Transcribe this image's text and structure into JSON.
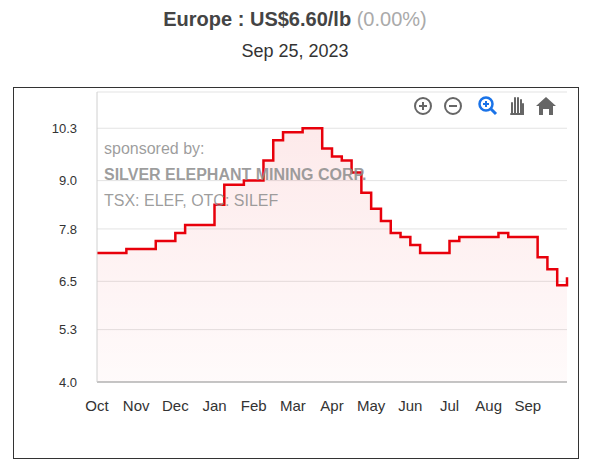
{
  "chart_data": {
    "type": "area",
    "title": "Europe : US$6.60/lb",
    "subtitle": "Sep 25, 2023",
    "annotations": [
      "(0.00%)",
      "sponsored by:",
      "SILVER ELEPHANT MINING CORP.",
      "TSX: ELEF, OTC: SILEF"
    ],
    "categories": [
      "Oct",
      null,
      null,
      null,
      "Nov",
      null,
      null,
      null,
      "Dec",
      null,
      null,
      null,
      "Jan",
      null,
      null,
      null,
      "Feb",
      null,
      null,
      null,
      "Mar",
      null,
      null,
      null,
      "Apr",
      null,
      null,
      null,
      "May",
      null,
      null,
      null,
      "Jun",
      null,
      null,
      null,
      "Jul",
      null,
      null,
      null,
      "Aug",
      null,
      null,
      null,
      "Sep",
      null,
      null,
      null,
      null
    ],
    "values": [
      7.2,
      7.2,
      7.2,
      7.3,
      7.3,
      7.3,
      7.5,
      7.5,
      7.7,
      7.9,
      7.9,
      7.9,
      8.4,
      8.9,
      8.9,
      9.0,
      9.0,
      9.5,
      10.0,
      10.2,
      10.2,
      10.3,
      10.3,
      9.8,
      9.6,
      9.5,
      9.2,
      8.7,
      8.3,
      8.0,
      7.7,
      7.6,
      7.4,
      7.2,
      7.2,
      7.2,
      7.5,
      7.6,
      7.6,
      7.6,
      7.6,
      7.7,
      7.6,
      7.6,
      7.6,
      7.1,
      6.8,
      6.4,
      6.6
    ],
    "color": "#e8000b",
    "line_style": "step",
    "ylim": [
      4,
      11.2
    ],
    "yticks": [
      {
        "value": 4,
        "label": "4.0"
      },
      {
        "value": 5.3,
        "label": "5.3"
      },
      {
        "value": 6.5,
        "label": "6.5"
      },
      {
        "value": 7.8,
        "label": "7.8"
      },
      {
        "value": 9,
        "label": "9.0"
      },
      {
        "value": 10.3,
        "label": "10.3"
      }
    ],
    "grid": true
  }
}
